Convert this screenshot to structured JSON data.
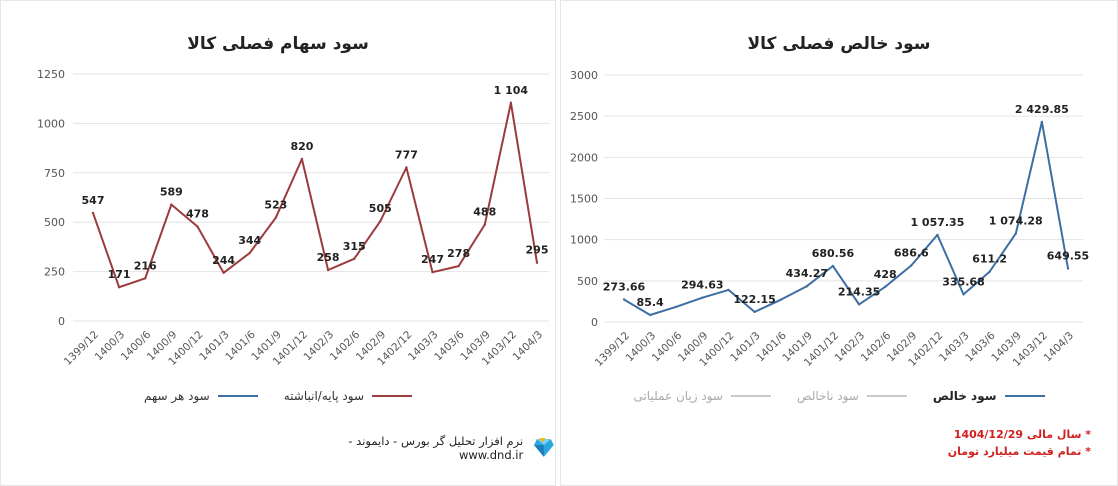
{
  "left": {
    "title": "سود سهام فصلی کالا",
    "legend": [
      {
        "label": "سود پایه/انباشته",
        "color": "#9c3b3b"
      },
      {
        "label": "سود هر سهم",
        "color": "#3e6fa3"
      }
    ],
    "footer_text": "نرم افزار تحلیل گر بورس - دایموند - www.dnd.ir"
  },
  "right": {
    "title": "سود خالص فصلی کالا",
    "legend": [
      {
        "label": "سود خالص",
        "color": "#3e6fa3"
      },
      {
        "label": "سود ناخالص",
        "color": "#c8c8c8"
      },
      {
        "label": "سود زیان عملیاتی",
        "color": "#c8c8c8"
      }
    ],
    "notes": [
      "* سال مالی 1404/12/29",
      "* تمام قیمت میلیارد تومان"
    ]
  },
  "chart_data": [
    {
      "type": "line",
      "title": "سود سهام فصلی کالا",
      "categories": [
        "1399/12",
        "1400/3",
        "1400/6",
        "1400/9",
        "1400/12",
        "1401/3",
        "1401/6",
        "1401/9",
        "1401/12",
        "1402/3",
        "1402/6",
        "1402/9",
        "1402/12",
        "1403/3",
        "1403/6",
        "1403/9",
        "1403/12",
        "1404/3"
      ],
      "yticks": [
        "0",
        "250",
        "500",
        "750",
        "1000",
        "1250"
      ],
      "ylim": [
        0,
        1250
      ],
      "series": [
        {
          "name": "سود پایه/انباشته",
          "color": "#9c3b3b",
          "values": [
            547,
            171,
            216,
            589,
            478,
            244,
            344,
            523,
            820,
            258,
            315,
            505,
            777,
            247,
            278,
            488,
            1104,
            295
          ],
          "labels": [
            "547",
            "171",
            "216",
            "589",
            "478",
            "244",
            "344",
            "523",
            "820",
            "258",
            "315",
            "505",
            "777",
            "247",
            "278",
            "488",
            "1 104",
            "295"
          ]
        }
      ],
      "grid": true
    },
    {
      "type": "line",
      "title": "سود خالص فصلی کالا",
      "categories": [
        "1399/12",
        "1400/3",
        "1400/6",
        "1400/9",
        "1400/12",
        "1401/3",
        "1401/6",
        "1401/9",
        "1401/12",
        "1402/3",
        "1402/6",
        "1402/9",
        "1402/12",
        "1403/3",
        "1403/6",
        "1403/9",
        "1403/12",
        "1404/3"
      ],
      "yticks": [
        "0",
        "500",
        "1000",
        "1500",
        "2000",
        "2500",
        "3000"
      ],
      "ylim": [
        0,
        3000
      ],
      "series": [
        {
          "name": "سود خالص",
          "color": "#3e6fa3",
          "values": [
            273.66,
            85.4,
            185,
            294.63,
            390,
            122.15,
            270,
            434.27,
            680.56,
            214.35,
            428,
            686.6,
            1057.35,
            335.68,
            611.2,
            1074.28,
            2429.85,
            649.55
          ],
          "labels": [
            "273.66",
            "85.4",
            "",
            "294.63",
            "",
            "122.15",
            "",
            "434.27",
            "680.56",
            "214.35",
            "428",
            "686.6",
            "1 057.35",
            "335.68",
            "611.2",
            "1 074.28",
            "2 429.85",
            "649.55"
          ]
        }
      ],
      "grid": true
    }
  ]
}
